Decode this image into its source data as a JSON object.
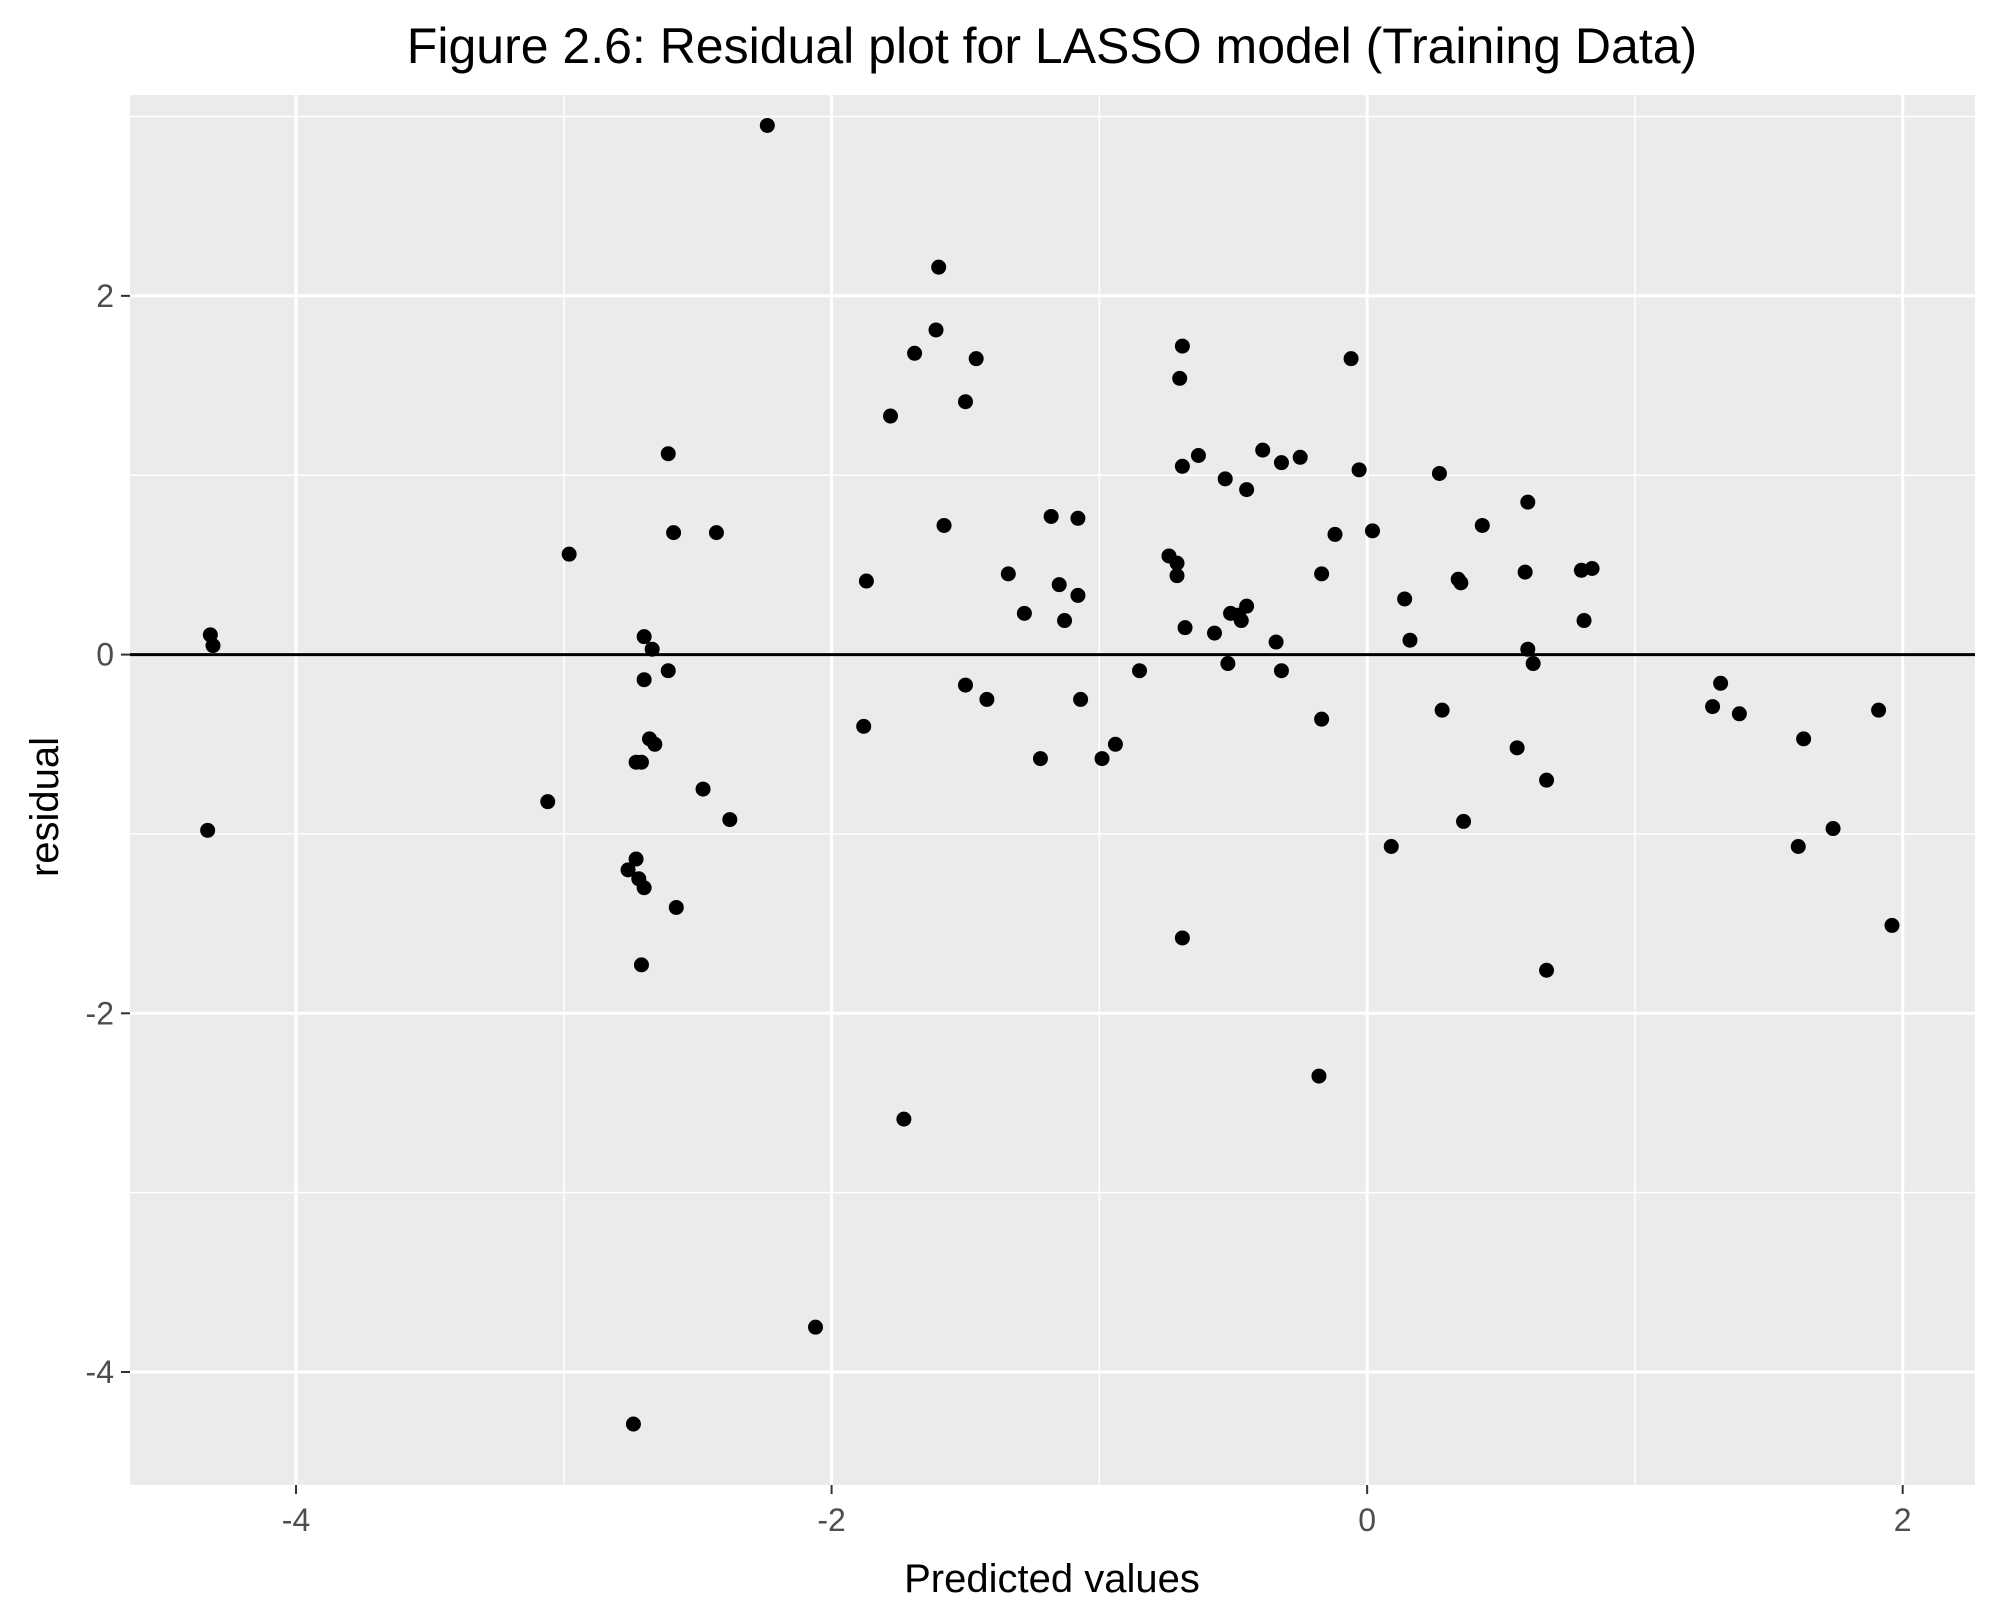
{
  "chart_data": {
    "type": "scatter",
    "title": "Figure 2.6: Residual plot for LASSO model (Training Data)",
    "xlabel": "Predicted values",
    "ylabel": "residual",
    "xlim": [
      -4.62,
      2.27
    ],
    "ylim": [
      -4.63,
      3.12
    ],
    "x_ticks": [
      -4,
      -2,
      0,
      2
    ],
    "x_tick_labels": [
      "-4",
      "-2",
      "0",
      "2"
    ],
    "y_ticks": [
      -4,
      -2,
      0,
      2
    ],
    "y_tick_labels": [
      "-4",
      "-2",
      "0",
      "2"
    ],
    "reference_line_y": 0,
    "grid": true,
    "colors": {
      "panel": "#ebebeb",
      "grid": "#ffffff",
      "points": "#000000",
      "reference_line": "#000000",
      "tick_text": "#4d4d4d"
    },
    "points": [
      {
        "x": -4.32,
        "y": 0.11
      },
      {
        "x": -4.31,
        "y": 0.05
      },
      {
        "x": -4.33,
        "y": -0.98
      },
      {
        "x": -3.06,
        "y": -0.82
      },
      {
        "x": -2.98,
        "y": 0.56
      },
      {
        "x": -2.61,
        "y": 1.12
      },
      {
        "x": -2.59,
        "y": 0.68
      },
      {
        "x": -2.43,
        "y": 0.68
      },
      {
        "x": -2.7,
        "y": 0.1
      },
      {
        "x": -2.67,
        "y": 0.03
      },
      {
        "x": -2.61,
        "y": -0.09
      },
      {
        "x": -2.7,
        "y": -0.14
      },
      {
        "x": -2.68,
        "y": -0.47
      },
      {
        "x": -2.66,
        "y": -0.5
      },
      {
        "x": -2.71,
        "y": -0.6
      },
      {
        "x": -2.73,
        "y": -0.6
      },
      {
        "x": -2.48,
        "y": -0.75
      },
      {
        "x": -2.38,
        "y": -0.92
      },
      {
        "x": -2.73,
        "y": -1.14
      },
      {
        "x": -2.76,
        "y": -1.2
      },
      {
        "x": -2.72,
        "y": -1.25
      },
      {
        "x": -2.7,
        "y": -1.3
      },
      {
        "x": -2.58,
        "y": -1.41
      },
      {
        "x": -2.71,
        "y": -1.73
      },
      {
        "x": -2.74,
        "y": -4.29
      },
      {
        "x": -2.24,
        "y": 2.95
      },
      {
        "x": -2.06,
        "y": -3.75
      },
      {
        "x": -1.87,
        "y": 0.41
      },
      {
        "x": -1.88,
        "y": -0.4
      },
      {
        "x": -1.78,
        "y": 1.33
      },
      {
        "x": -1.69,
        "y": 1.68
      },
      {
        "x": -1.61,
        "y": 1.81
      },
      {
        "x": -1.6,
        "y": 2.16
      },
      {
        "x": -1.58,
        "y": 0.72
      },
      {
        "x": -1.5,
        "y": 1.41
      },
      {
        "x": -1.46,
        "y": 1.65
      },
      {
        "x": -1.5,
        "y": -0.17
      },
      {
        "x": -1.42,
        "y": -0.25
      },
      {
        "x": -1.34,
        "y": 0.45
      },
      {
        "x": -1.28,
        "y": 0.23
      },
      {
        "x": -1.22,
        "y": -0.58
      },
      {
        "x": -1.18,
        "y": 0.77
      },
      {
        "x": -1.15,
        "y": 0.39
      },
      {
        "x": -1.13,
        "y": 0.19
      },
      {
        "x": -1.08,
        "y": 0.76
      },
      {
        "x": -1.08,
        "y": 0.33
      },
      {
        "x": -1.07,
        "y": -0.25
      },
      {
        "x": -1.73,
        "y": -2.59
      },
      {
        "x": -0.99,
        "y": -0.58
      },
      {
        "x": -0.94,
        "y": -0.5
      },
      {
        "x": -0.85,
        "y": -0.09
      },
      {
        "x": -0.74,
        "y": 0.55
      },
      {
        "x": -0.71,
        "y": 0.44
      },
      {
        "x": -0.71,
        "y": 0.51
      },
      {
        "x": -0.7,
        "y": 1.54
      },
      {
        "x": -0.69,
        "y": 1.72
      },
      {
        "x": -0.69,
        "y": 1.05
      },
      {
        "x": -0.68,
        "y": 0.15
      },
      {
        "x": -0.63,
        "y": 1.11
      },
      {
        "x": -0.57,
        "y": 0.12
      },
      {
        "x": -0.53,
        "y": 0.98
      },
      {
        "x": -0.52,
        "y": -0.05
      },
      {
        "x": -0.51,
        "y": 0.23
      },
      {
        "x": -0.48,
        "y": 0.22
      },
      {
        "x": -0.47,
        "y": 0.19
      },
      {
        "x": -0.45,
        "y": 0.27
      },
      {
        "x": -0.45,
        "y": 0.92
      },
      {
        "x": -0.39,
        "y": 1.14
      },
      {
        "x": -0.34,
        "y": 0.07
      },
      {
        "x": -0.32,
        "y": -0.09
      },
      {
        "x": -0.32,
        "y": 1.07
      },
      {
        "x": -0.25,
        "y": 1.1
      },
      {
        "x": -0.69,
        "y": -1.58
      },
      {
        "x": -0.17,
        "y": 0.45
      },
      {
        "x": -0.17,
        "y": -0.36
      },
      {
        "x": -0.12,
        "y": 0.67
      },
      {
        "x": -0.06,
        "y": 1.65
      },
      {
        "x": -0.03,
        "y": 1.03
      },
      {
        "x": 0.02,
        "y": 0.69
      },
      {
        "x": -0.18,
        "y": -2.35
      },
      {
        "x": 0.09,
        "y": -1.07
      },
      {
        "x": 0.14,
        "y": 0.31
      },
      {
        "x": 0.16,
        "y": 0.08
      },
      {
        "x": 0.27,
        "y": 1.01
      },
      {
        "x": 0.28,
        "y": -0.31
      },
      {
        "x": 0.34,
        "y": 0.42
      },
      {
        "x": 0.35,
        "y": 0.4
      },
      {
        "x": 0.36,
        "y": -0.93
      },
      {
        "x": 0.43,
        "y": 0.72
      },
      {
        "x": 0.56,
        "y": -0.52
      },
      {
        "x": 0.59,
        "y": 0.46
      },
      {
        "x": 0.6,
        "y": 0.85
      },
      {
        "x": 0.6,
        "y": 0.03
      },
      {
        "x": 0.62,
        "y": -0.05
      },
      {
        "x": 0.67,
        "y": -0.7
      },
      {
        "x": 0.67,
        "y": -1.76
      },
      {
        "x": 0.8,
        "y": 0.47
      },
      {
        "x": 0.81,
        "y": 0.19
      },
      {
        "x": 0.84,
        "y": 0.48
      },
      {
        "x": 1.29,
        "y": -0.29
      },
      {
        "x": 1.32,
        "y": -0.16
      },
      {
        "x": 1.39,
        "y": -0.33
      },
      {
        "x": 1.61,
        "y": -1.07
      },
      {
        "x": 1.63,
        "y": -0.47
      },
      {
        "x": 1.74,
        "y": -0.97
      },
      {
        "x": 1.91,
        "y": -0.31
      },
      {
        "x": 1.96,
        "y": -1.51
      }
    ]
  }
}
